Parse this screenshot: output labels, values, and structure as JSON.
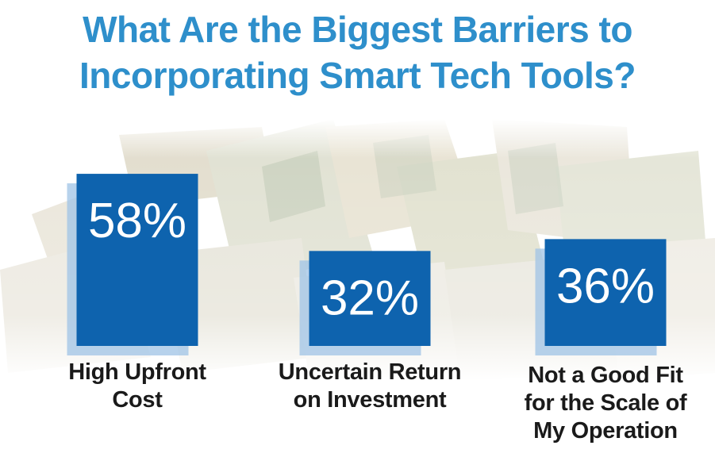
{
  "title": {
    "line1": "What Are the Biggest Barriers to",
    "line2": "Incorporating Smart Tech Tools?"
  },
  "colors": {
    "title": "#2e8fcb",
    "bar": "#0e63ae",
    "bar_shadow": "#9fc3e6",
    "value_text": "#ffffff",
    "label_text": "#1a1a1a"
  },
  "background_image": "money-bills-collage",
  "chart_data": {
    "type": "bar",
    "title": "What Are the Biggest Barriers to Incorporating Smart Tech Tools?",
    "categories": [
      [
        "High Upfront",
        "Cost"
      ],
      [
        "Uncertain Return",
        "on Investment"
      ],
      [
        "Not a Good Fit",
        "for the Scale of",
        "My Operation"
      ]
    ],
    "values": [
      58,
      32,
      36
    ],
    "value_labels": [
      "58%",
      "32%",
      "36%"
    ],
    "unit": "%",
    "ylim": [
      0,
      100
    ],
    "grid": false
  }
}
